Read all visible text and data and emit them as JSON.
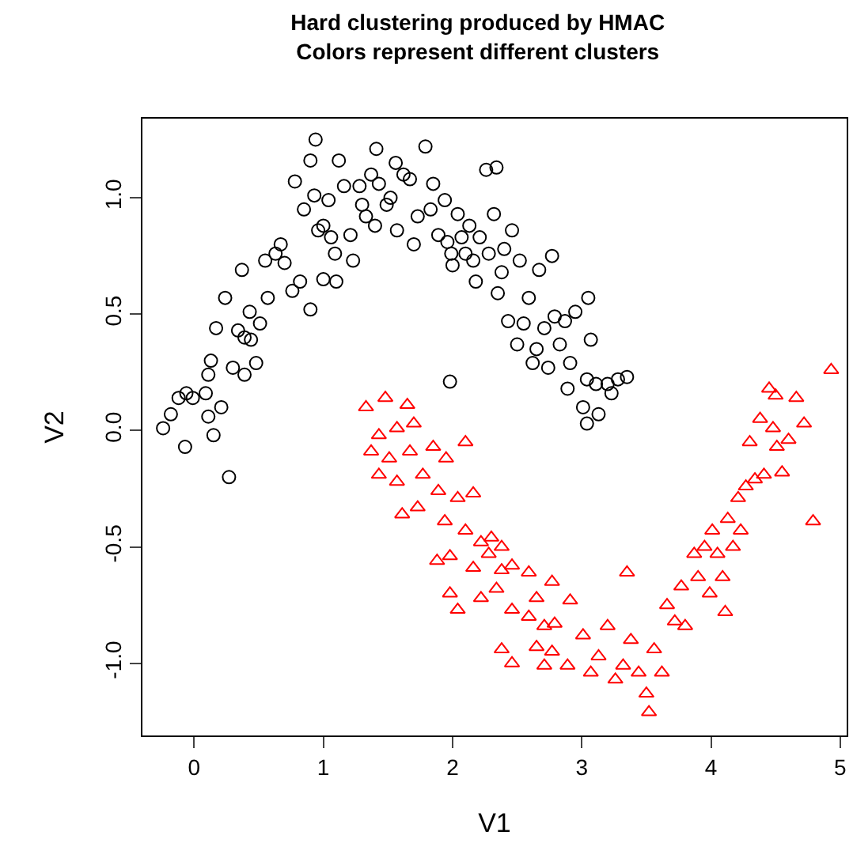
{
  "chart_data": {
    "type": "scatter",
    "title": "Hard clustering produced by HMAC",
    "subtitle": "Colors represent different clusters",
    "xlabel": "V1",
    "ylabel": "V2",
    "xlim": [
      -0.4,
      5.05
    ],
    "ylim": [
      -1.31,
      1.34
    ],
    "xticks": [
      0,
      1,
      2,
      3,
      4,
      5
    ],
    "yticks": [
      {
        "value": -1,
        "label": "-1.0"
      },
      {
        "value": -0.5,
        "label": "-0.5"
      },
      {
        "value": 0,
        "label": "0.0"
      },
      {
        "value": 0.5,
        "label": "0.5"
      },
      {
        "value": 1,
        "label": "1.0"
      }
    ],
    "grid": false,
    "series": [
      {
        "color": "#000000",
        "marker": "circle",
        "x": [
          -0.24,
          -0.18,
          -0.12,
          -0.06,
          -0.01,
          -0.07,
          0.09,
          0.11,
          0.13,
          0.11,
          0.15,
          0.17,
          0.21,
          0.24,
          0.27,
          0.3,
          0.34,
          0.37,
          0.39,
          0.39,
          0.43,
          0.44,
          0.48,
          0.51,
          0.55,
          0.57,
          0.63,
          0.67,
          0.7,
          0.76,
          0.78,
          0.82,
          0.85,
          0.9,
          0.9,
          0.94,
          0.93,
          0.96,
          1.0,
          1.0,
          1.04,
          1.06,
          1.09,
          1.1,
          1.12,
          1.16,
          1.21,
          1.23,
          1.28,
          1.3,
          1.33,
          1.37,
          1.4,
          1.41,
          1.43,
          1.49,
          1.52,
          1.56,
          1.57,
          1.62,
          1.67,
          1.7,
          1.73,
          1.79,
          1.83,
          1.85,
          1.89,
          1.94,
          1.96,
          1.99,
          2.0,
          2.04,
          2.07,
          2.1,
          2.13,
          2.16,
          2.18,
          1.98,
          2.21,
          2.26,
          2.28,
          2.32,
          2.34,
          2.35,
          2.38,
          2.4,
          2.43,
          2.46,
          2.5,
          2.52,
          2.55,
          2.59,
          2.62,
          2.65,
          2.67,
          2.71,
          2.74,
          2.77,
          2.79,
          2.83,
          2.87,
          2.89,
          2.91,
          2.95,
          3.01,
          3.04,
          3.05,
          3.07,
          3.11,
          3.13,
          3.2,
          3.23,
          3.28,
          3.35,
          3.04
        ],
        "values": [
          0.01,
          0.07,
          0.14,
          0.16,
          0.14,
          -0.07,
          0.16,
          0.24,
          0.3,
          0.06,
          -0.02,
          0.44,
          0.1,
          0.57,
          -0.2,
          0.27,
          0.43,
          0.69,
          0.4,
          0.24,
          0.51,
          0.39,
          0.29,
          0.46,
          0.73,
          0.57,
          0.76,
          0.8,
          0.72,
          0.6,
          1.07,
          0.64,
          0.95,
          0.52,
          1.16,
          1.25,
          1.01,
          0.86,
          0.88,
          0.65,
          0.99,
          0.83,
          0.76,
          0.64,
          1.16,
          1.05,
          0.84,
          0.73,
          1.05,
          0.97,
          0.92,
          1.1,
          0.88,
          1.21,
          1.06,
          0.97,
          1.0,
          1.15,
          0.86,
          1.1,
          1.08,
          0.8,
          0.92,
          1.22,
          0.95,
          1.06,
          0.84,
          0.99,
          0.81,
          0.76,
          0.71,
          0.93,
          0.83,
          0.76,
          0.88,
          0.73,
          0.64,
          0.21,
          0.83,
          1.12,
          0.76,
          0.93,
          1.13,
          0.59,
          0.68,
          0.78,
          0.47,
          0.86,
          0.37,
          0.73,
          0.46,
          0.57,
          0.29,
          0.35,
          0.69,
          0.44,
          0.27,
          0.75,
          0.49,
          0.37,
          0.47,
          0.18,
          0.29,
          0.51,
          0.1,
          0.22,
          0.57,
          0.39,
          0.2,
          0.07,
          0.2,
          0.16,
          0.22,
          0.23,
          0.03
        ]
      },
      {
        "color": "#ff0000",
        "marker": "triangle",
        "x": [
          1.33,
          1.48,
          1.65,
          1.43,
          1.57,
          1.7,
          1.37,
          1.51,
          1.67,
          1.85,
          1.95,
          2.1,
          1.43,
          1.57,
          1.77,
          1.89,
          2.04,
          2.16,
          1.61,
          1.73,
          1.94,
          2.1,
          2.22,
          2.3,
          2.38,
          1.88,
          1.98,
          2.16,
          2.28,
          2.38,
          2.46,
          2.59,
          2.77,
          1.98,
          2.04,
          2.22,
          2.34,
          2.46,
          2.59,
          2.65,
          2.71,
          2.79,
          2.91,
          2.38,
          2.46,
          2.65,
          2.71,
          2.77,
          2.89,
          3.01,
          3.07,
          3.13,
          3.2,
          3.26,
          3.32,
          3.35,
          3.38,
          3.44,
          3.5,
          3.52,
          3.56,
          3.62,
          3.66,
          3.72,
          3.77,
          3.8,
          3.87,
          3.9,
          3.95,
          3.99,
          4.01,
          4.05,
          4.09,
          4.13,
          4.17,
          4.21,
          4.23,
          4.27,
          4.3,
          4.34,
          4.38,
          4.41,
          4.45,
          4.48,
          4.51,
          4.55,
          4.6,
          4.66,
          4.72,
          4.79,
          4.93,
          4.5,
          4.11
        ],
        "values": [
          0.1,
          0.14,
          0.11,
          -0.02,
          0.01,
          0.03,
          -0.09,
          -0.12,
          -0.09,
          -0.07,
          -0.12,
          -0.05,
          -0.19,
          -0.22,
          -0.19,
          -0.26,
          -0.29,
          -0.27,
          -0.36,
          -0.33,
          -0.39,
          -0.43,
          -0.48,
          -0.46,
          -0.5,
          -0.56,
          -0.54,
          -0.59,
          -0.53,
          -0.6,
          -0.58,
          -0.61,
          -0.65,
          -0.7,
          -0.77,
          -0.72,
          -0.68,
          -0.77,
          -0.8,
          -0.72,
          -0.84,
          -0.83,
          -0.73,
          -0.94,
          -1.0,
          -0.93,
          -1.01,
          -0.95,
          -1.01,
          -0.88,
          -1.04,
          -0.97,
          -0.84,
          -1.07,
          -1.01,
          -0.61,
          -0.9,
          -1.04,
          -1.13,
          -1.21,
          -0.94,
          -1.04,
          -0.75,
          -0.82,
          -0.67,
          -0.84,
          -0.53,
          -0.63,
          -0.5,
          -0.7,
          -0.43,
          -0.53,
          -0.63,
          -0.38,
          -0.5,
          -0.29,
          -0.43,
          -0.24,
          -0.05,
          -0.21,
          0.05,
          -0.19,
          0.18,
          0.01,
          -0.07,
          -0.18,
          -0.04,
          0.14,
          0.03,
          -0.39,
          0.26,
          0.15,
          -0.78
        ]
      }
    ]
  }
}
